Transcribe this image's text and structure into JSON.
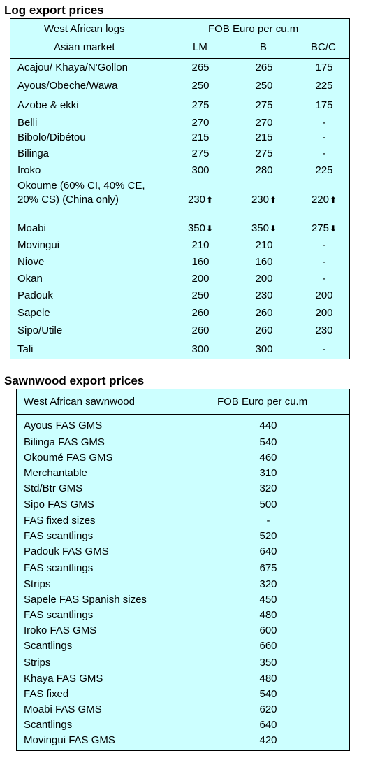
{
  "log_section": {
    "title": "Log export prices",
    "header": {
      "col1_line1": "West African logs",
      "col1_line2": "Asian market",
      "price_header": "FOB Euro per cu.m",
      "col_lm": "LM",
      "col_b": "B",
      "col_bcc": "BC/C"
    },
    "rows": [
      {
        "name": "Acajou/ Khaya/N'Gollon",
        "lm": "265",
        "b": "265",
        "bcc": "175"
      },
      {
        "name": "Ayous/Obeche/Wawa",
        "lm": "250",
        "b": "250",
        "bcc": "225"
      },
      {
        "name": "Azobe & ekki",
        "lm": "275",
        "b": "275",
        "bcc": "175"
      },
      {
        "name": "Belli",
        "lm": "270",
        "b": "270",
        "bcc": "-"
      },
      {
        "name": "Bibolo/Dibétou",
        "lm": "215",
        "b": "215",
        "bcc": "-"
      },
      {
        "name": "Bilinga",
        "lm": "275",
        "b": "275",
        "bcc": "-"
      },
      {
        "name": "Iroko",
        "lm": "300",
        "b": "280",
        "bcc": "225"
      },
      {
        "name": "Okoume (60% CI, 40% CE, 20% CS) (China only)",
        "lm": "230",
        "b": "230",
        "bcc": "220",
        "trend": "up"
      },
      {
        "name": "Moabi",
        "lm": "350",
        "b": "350",
        "bcc": "275",
        "trend": "down"
      },
      {
        "name": "Movingui",
        "lm": "210",
        "b": "210",
        "bcc": "-"
      },
      {
        "name": "Niove",
        "lm": "160",
        "b": "160",
        "bcc": "-"
      },
      {
        "name": "Okan",
        "lm": "200",
        "b": "200",
        "bcc": "-"
      },
      {
        "name": "Padouk",
        "lm": "250",
        "b": "230",
        "bcc": "200"
      },
      {
        "name": "Sapele",
        "lm": "260",
        "b": "260",
        "bcc": "200"
      },
      {
        "name": "Sipo/Utile",
        "lm": "260",
        "b": "260",
        "bcc": "230"
      },
      {
        "name": "Tali",
        "lm": "300",
        "b": "300",
        "bcc": "-"
      }
    ]
  },
  "sawn_section": {
    "title": "Sawnwood export prices",
    "header": {
      "col1": "West African sawnwood",
      "col2": "FOB Euro per cu.m"
    },
    "rows": [
      {
        "name": "Ayous FAS GMS",
        "price": "440"
      },
      {
        "name": "Bilinga FAS GMS",
        "price": "540"
      },
      {
        "name": "Okoumé FAS GMS",
        "price": "460"
      },
      {
        "name": "Merchantable",
        "price": "310"
      },
      {
        "name": "Std/Btr GMS",
        "price": "320"
      },
      {
        "name": "Sipo FAS GMS",
        "price": "500"
      },
      {
        "name": "FAS fixed sizes",
        "price": "-"
      },
      {
        "name": "FAS scantlings",
        "price": "520"
      },
      {
        "name": "Padouk FAS GMS",
        "price": "640"
      },
      {
        "name": "FAS scantlings",
        "price": "675"
      },
      {
        "name": "Strips",
        "price": "320"
      },
      {
        "name": "Sapele FAS Spanish sizes",
        "price": "450"
      },
      {
        "name": "FAS scantlings",
        "price": "480"
      },
      {
        "name": "Iroko FAS GMS",
        "price": "600"
      },
      {
        "name": "Scantlings",
        "price": "660"
      },
      {
        "name": "Strips",
        "price": "350"
      },
      {
        "name": "Khaya FAS GMS",
        "price": "480"
      },
      {
        "name": "FAS fixed",
        "price": "540"
      },
      {
        "name": "Moabi FAS GMS",
        "price": "620"
      },
      {
        "name": "Scantlings",
        "price": "640"
      },
      {
        "name": "Movingui FAS GMS",
        "price": "420"
      }
    ]
  }
}
